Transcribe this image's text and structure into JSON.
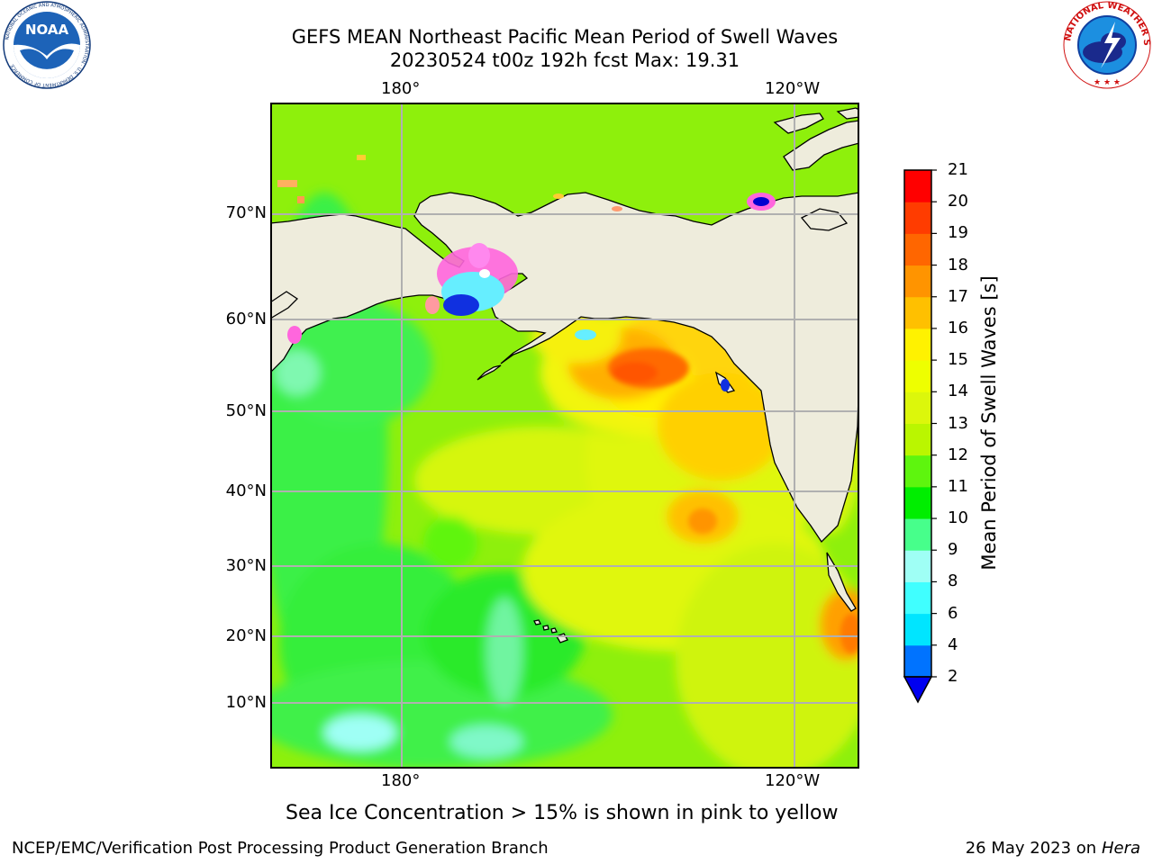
{
  "header": {
    "title_line1": "GEFS MEAN Northeast Pacific Mean Period of Swell Waves",
    "title_line2": "20230524 t00z 192h fcst   Max: 19.31"
  },
  "logos": {
    "left": "NOAA",
    "left_ring_text": "NATIONAL OCEANIC AND ATMOSPHERIC ADMINISTRATION · U.S. DEPARTMENT OF COMMERCE",
    "right_ring_text": "NATIONAL WEATHER SERVICE"
  },
  "map": {
    "lon_labels_top": [
      "180°",
      "120°W"
    ],
    "lon_labels_bottom": [
      "180°",
      "120°W"
    ],
    "lat_labels": [
      "70°N",
      "60°N",
      "50°N",
      "40°N",
      "30°N",
      "20°N",
      "10°N"
    ],
    "colors": {
      "land": "#eeecdc",
      "grid": "#b0b0b0",
      "ocean_base": "#8ef00c"
    }
  },
  "colorbar": {
    "title": "Mean Period of Swell Waves [s]",
    "tick_labels": [
      "21",
      "20",
      "19",
      "18",
      "17",
      "16",
      "15",
      "14",
      "13",
      "12",
      "11",
      "10",
      "9",
      "8",
      "6",
      "4",
      "2"
    ],
    "levels": [
      2,
      4,
      6,
      8,
      9,
      10,
      11,
      12,
      13,
      14,
      15,
      16,
      17,
      18,
      19,
      20,
      21
    ],
    "colors": [
      "#0073ff",
      "#00e5ff",
      "#40ffff",
      "#9ffff5",
      "#47ff8b",
      "#00ee00",
      "#5ef50e",
      "#baf600",
      "#dcf70b",
      "#eeff00",
      "#fff200",
      "#ffc000",
      "#ff9400",
      "#ff6600",
      "#ff3c00",
      "#ff0000"
    ],
    "under_color": "#0000f0"
  },
  "footer": {
    "note": "Sea Ice Concentration > 15% is shown in pink to yellow",
    "credit": "NCEP/EMC/Verification Post Processing Product Generation Branch",
    "date": "26 May 2023 on",
    "machine": "Hera"
  }
}
